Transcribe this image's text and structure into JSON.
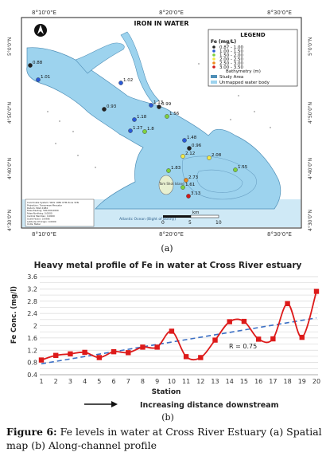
{
  "chart_data": [
    {
      "type": "scatter",
      "title": "IRON IN WATER",
      "top_coords": [
        "8°10'0\"E",
        "8°20'0\"E",
        "8°30'0\"E"
      ],
      "bottom_coords": [
        "8°10'0\"E",
        "8°20'0\"E",
        "8°30'0\"E"
      ],
      "left_coords": [
        "5°0'0\"N",
        "4°50'0\"N",
        "4°40'0\"N",
        "4°30'0\"N"
      ],
      "right_coords": [
        "5°0'0\"N",
        "4°50'0\"N",
        "4°40'0\"N",
        "4°30'0\"N"
      ],
      "legend": {
        "title": "LEGEND",
        "subtitle": "Fe (mg/L)",
        "classes": [
          {
            "label": "0.87 - 1.00",
            "color": "#222222"
          },
          {
            "label": "1.00 - 1.50",
            "color": "#2a5ad6"
          },
          {
            "label": "1.50 - 2.00",
            "color": "#7fd03f"
          },
          {
            "label": "2.00 - 2.50",
            "color": "#f2e84a"
          },
          {
            "label": "2.50 - 3.00",
            "color": "#f08a1c"
          },
          {
            "label": "3.00 - 3.50",
            "color": "#d11a1a"
          }
        ],
        "bathymetry": "Bathymetry (m)",
        "study_area": "Study Area",
        "unmapped": "Unmapped water body"
      },
      "points": [
        {
          "label": "0.88",
          "value": 0.88
        },
        {
          "label": "1.01",
          "value": 1.01
        },
        {
          "label": "1.02",
          "value": 1.02
        },
        {
          "label": "1.13",
          "value": 1.13
        },
        {
          "label": "0.93",
          "value": 0.93
        },
        {
          "label": "1.18",
          "value": 1.18
        },
        {
          "label": "1.27",
          "value": 1.27
        },
        {
          "label": "1.8",
          "value": 1.8
        },
        {
          "label": "0.99",
          "value": 0.99
        },
        {
          "label": "1.56",
          "value": 1.56
        },
        {
          "label": "1.48",
          "value": 1.48
        },
        {
          "label": "0.96",
          "value": 0.96
        },
        {
          "label": "2.12",
          "value": 2.12
        },
        {
          "label": "2.08",
          "value": 2.08
        },
        {
          "label": "1.83",
          "value": 1.83
        },
        {
          "label": "1.55",
          "value": 1.55
        },
        {
          "label": "2.73",
          "value": 2.73
        },
        {
          "label": "1.61",
          "value": 1.61
        },
        {
          "label": "3.13",
          "value": 3.13
        }
      ],
      "places": {
        "island": "Tom Shot Island",
        "ocean": "Atlantic Ocean (Bight of Bonny)"
      },
      "scale_unit": "km",
      "scale_ticks": [
        "0",
        "5",
        "10"
      ],
      "info_lines": [
        "Coordinate System: WGS 1984 UTM Zone 32N",
        "Projection: Transverse Mercator",
        "Datum: WGS 1984",
        "False Easting: 500,000.0000",
        "False Northing: 0.0000",
        "Central Meridian: 9.0000",
        "Scale Factor: 0.9996",
        "Latitude Of Origin: 0.0000",
        "Units: Meter"
      ]
    },
    {
      "type": "line",
      "title": "Heavy metal profile of Fe in water at Cross River estuary",
      "xlabel": "Station",
      "ylabel": "Fe Conc. (mg/l)",
      "x": [
        1,
        2,
        3,
        4,
        5,
        6,
        7,
        8,
        9,
        10,
        11,
        12,
        13,
        14,
        15,
        16,
        17,
        18,
        19,
        20
      ],
      "values": [
        0.88,
        1.03,
        1.08,
        1.13,
        0.96,
        1.15,
        1.12,
        1.3,
        1.3,
        1.82,
        0.99,
        0.96,
        1.53,
        2.13,
        2.14,
        1.56,
        1.57,
        2.72,
        1.62,
        3.12
      ],
      "yticks": [
        0.4,
        0.6,
        0.8,
        1,
        1.2,
        1.4,
        1.6,
        1.8,
        2,
        2.2,
        2.4,
        2.6,
        2.8,
        3,
        3.2,
        3.4,
        3.6
      ],
      "ylim": [
        0.4,
        3.6
      ],
      "line_color": "#dd1a1a",
      "trend_color": "#3b6fc4",
      "annotation": "R = 0.75",
      "direction_label": "Increasing distance downstream",
      "grid": true
    }
  ],
  "panel_labels": {
    "a": "(a)",
    "b": "(b)"
  },
  "caption": {
    "label": "Figure 6:",
    "text": " Fe levels in water at Cross River Estuary (a) Spatial map (b) Along-channel profile"
  }
}
